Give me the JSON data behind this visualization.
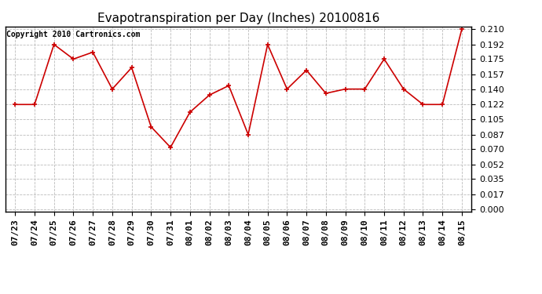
{
  "title": "Evapotranspiration per Day (Inches) 20100816",
  "copyright_text": "Copyright 2010 Cartronics.com",
  "x_labels": [
    "07/23",
    "07/24",
    "07/25",
    "07/26",
    "07/27",
    "07/28",
    "07/29",
    "07/30",
    "07/31",
    "08/01",
    "08/02",
    "08/03",
    "08/04",
    "08/05",
    "08/06",
    "08/07",
    "08/08",
    "08/09",
    "08/10",
    "08/11",
    "08/12",
    "08/13",
    "08/14",
    "08/15"
  ],
  "y_values": [
    0.122,
    0.122,
    0.192,
    0.175,
    0.183,
    0.14,
    0.165,
    0.096,
    0.072,
    0.113,
    0.133,
    0.144,
    0.087,
    0.192,
    0.14,
    0.162,
    0.135,
    0.14,
    0.14,
    0.175,
    0.14,
    0.122,
    0.122,
    0.21
  ],
  "y_ticks": [
    0.0,
    0.017,
    0.035,
    0.052,
    0.07,
    0.087,
    0.105,
    0.122,
    0.14,
    0.157,
    0.175,
    0.192,
    0.21
  ],
  "line_color": "#cc0000",
  "marker": "+",
  "marker_size": 5,
  "marker_linewidth": 1.2,
  "grid_color": "#bbbbbb",
  "background_color": "#ffffff",
  "plot_bg_color": "#ffffff",
  "title_fontsize": 11,
  "copyright_fontsize": 7,
  "tick_fontsize": 8,
  "ylim_min": 0.0,
  "ylim_max": 0.21,
  "line_width": 1.2
}
